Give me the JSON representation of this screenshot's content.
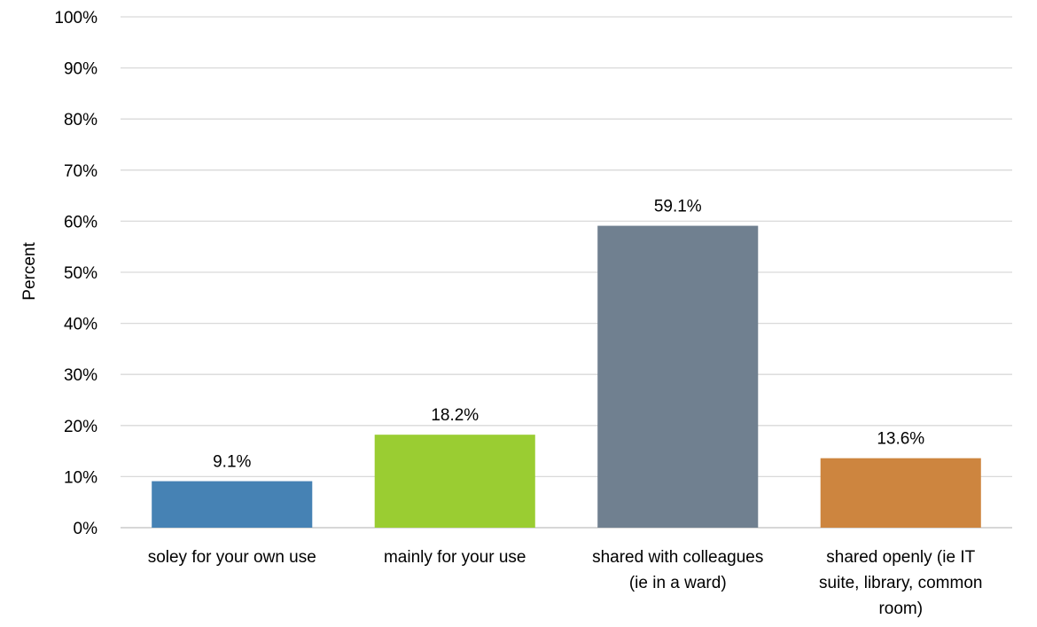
{
  "chart_data": {
    "type": "bar",
    "title": "",
    "xlabel": "",
    "ylabel": "Percent",
    "ylim": [
      0,
      100
    ],
    "ytick_step": 10,
    "ytick_suffix": "%",
    "grid": true,
    "categories": [
      [
        "soley for your own use"
      ],
      [
        "mainly for your use"
      ],
      [
        "shared with colleagues",
        "(ie in a ward)"
      ],
      [
        "shared openly (ie IT",
        "suite, library, common",
        "room)"
      ]
    ],
    "values": [
      9.1,
      18.2,
      59.1,
      13.6
    ],
    "value_labels": [
      "9.1%",
      "18.2%",
      "59.1%",
      "13.6%"
    ],
    "colors": [
      "#4682B4",
      "#9ACD32",
      "#708090",
      "#CD853F"
    ],
    "gridline_color": "#d9d9d9",
    "axis_color": "#bfbfbf"
  }
}
